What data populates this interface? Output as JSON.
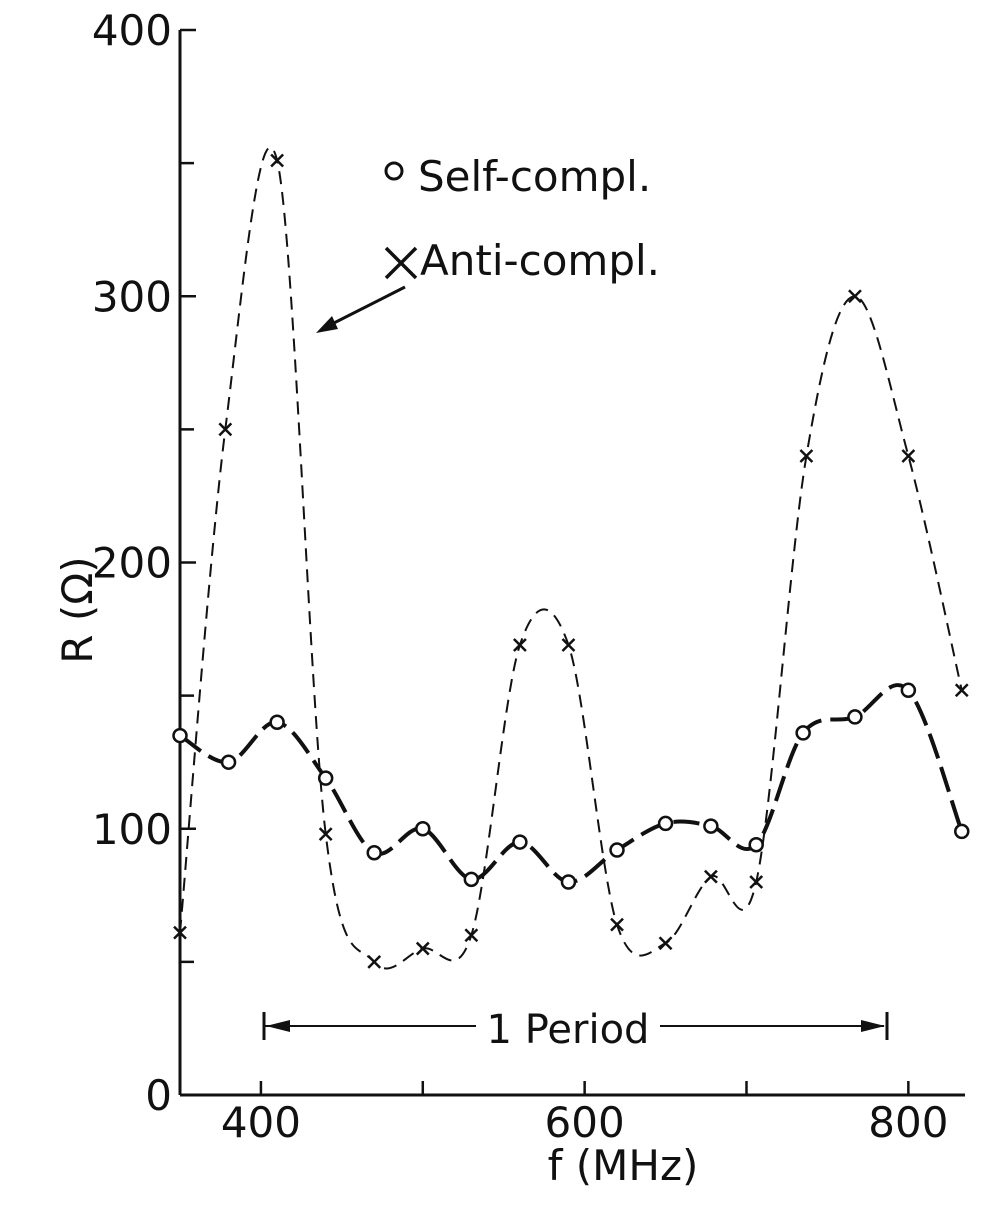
{
  "chart_data": {
    "type": "line",
    "xlabel": "f (MHz)",
    "ylabel": "R (Ω)",
    "xlim": [
      350,
      835
    ],
    "ylim": [
      0,
      400
    ],
    "x_ticks": [
      400,
      600,
      800
    ],
    "x_minor_ticks": [
      500,
      700
    ],
    "y_ticks": [
      0,
      100,
      200,
      300,
      400
    ],
    "y_minor_ticks": [
      50,
      150,
      250,
      350
    ],
    "grid": false,
    "legend_position": "top-center",
    "series": [
      {
        "name": "Self-compl.",
        "marker": "circle",
        "line_style": "long-dash",
        "points": [
          {
            "x": 350,
            "y": 135
          },
          {
            "x": 380,
            "y": 125
          },
          {
            "x": 410,
            "y": 140
          },
          {
            "x": 440,
            "y": 119
          },
          {
            "x": 470,
            "y": 91
          },
          {
            "x": 500,
            "y": 100
          },
          {
            "x": 530,
            "y": 81
          },
          {
            "x": 560,
            "y": 95
          },
          {
            "x": 590,
            "y": 80
          },
          {
            "x": 620,
            "y": 92
          },
          {
            "x": 650,
            "y": 102
          },
          {
            "x": 678,
            "y": 101
          },
          {
            "x": 706,
            "y": 94
          },
          {
            "x": 735,
            "y": 136
          },
          {
            "x": 767,
            "y": 142
          },
          {
            "x": 800,
            "y": 152
          },
          {
            "x": 833,
            "y": 99
          }
        ]
      },
      {
        "name": "Anti-compl.",
        "marker": "cross",
        "line_style": "short-dash",
        "points": [
          {
            "x": 350,
            "y": 61
          },
          {
            "x": 378,
            "y": 250
          },
          {
            "x": 410,
            "y": 351
          },
          {
            "x": 440,
            "y": 98
          },
          {
            "x": 470,
            "y": 50
          },
          {
            "x": 500,
            "y": 55
          },
          {
            "x": 530,
            "y": 60
          },
          {
            "x": 560,
            "y": 169
          },
          {
            "x": 590,
            "y": 169
          },
          {
            "x": 620,
            "y": 64
          },
          {
            "x": 650,
            "y": 57
          },
          {
            "x": 678,
            "y": 82
          },
          {
            "x": 706,
            "y": 80
          },
          {
            "x": 737,
            "y": 240
          },
          {
            "x": 767,
            "y": 300
          },
          {
            "x": 800,
            "y": 240
          },
          {
            "x": 833,
            "y": 152
          }
        ]
      }
    ],
    "annotations": [
      {
        "text": "1 Period",
        "x_start": 402,
        "x_end": 783,
        "y": 50
      }
    ]
  }
}
